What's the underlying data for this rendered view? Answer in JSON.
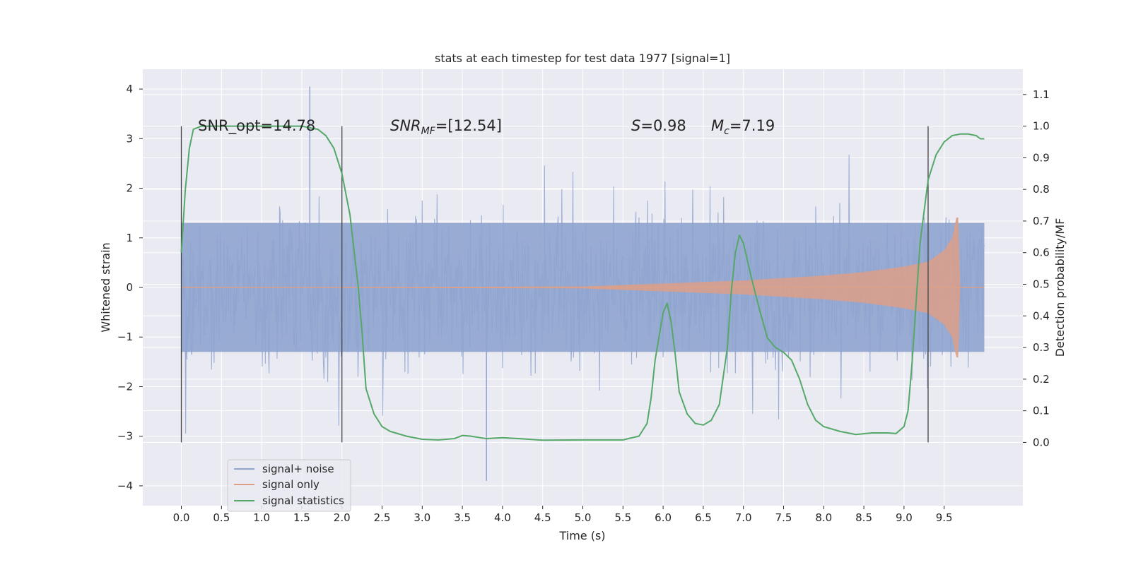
{
  "chart_data": {
    "type": "line",
    "title": "stats at each timestep for test data 1977 [signal=1]",
    "xlabel": "Time (s)",
    "ylabel_left": "Whitened strain",
    "ylabel_right": "Detection probability/MF",
    "xlim": [
      -0.48,
      10.48
    ],
    "ylim_left": [
      -4.4,
      4.4
    ],
    "ylim_right": [
      -0.2,
      1.18
    ],
    "x_ticks": [
      "0.0",
      "0.5",
      "1.0",
      "1.5",
      "2.0",
      "2.5",
      "3.0",
      "3.5",
      "4.0",
      "4.5",
      "5.0",
      "5.5",
      "6.0",
      "6.5",
      "7.0",
      "7.5",
      "8.0",
      "8.5",
      "9.0",
      "9.5"
    ],
    "y_ticks_left": [
      "4",
      "3",
      "2",
      "1",
      "0",
      "−1",
      "−2",
      "−3",
      "−4"
    ],
    "y_ticks_right": [
      "1.1",
      "1.0",
      "0.9",
      "0.8",
      "0.7",
      "0.6",
      "0.5",
      "0.4",
      "0.3",
      "0.2",
      "0.1",
      "0.0"
    ],
    "grid": true,
    "legend_position": "lower-left",
    "annotations": {
      "snr_opt": "SNR_opt=14.78",
      "snr_mf_main": "SNR",
      "snr_mf_sub": "MF",
      "snr_mf_rest": "=[12.54]",
      "s_main": "S",
      "s_rest": "=0.98",
      "mc_main": "M",
      "mc_sub": "c",
      "mc_rest": "=7.19"
    },
    "vertical_markers_x": [
      0.0,
      2.0,
      9.3
    ],
    "series": [
      {
        "name": "signal+ noise",
        "color": "#8fa4cf",
        "description_axis": "left",
        "t_range": [
          0.0,
          10.0
        ],
        "typical_amplitude": 1.3,
        "peak_values": [
          4.05,
          -3.9
        ]
      },
      {
        "name": "signal only",
        "color": "#dd9f88",
        "description_axis": "left",
        "envelope": {
          "x": [
            0.0,
            5.0,
            6.0,
            7.0,
            8.0,
            8.5,
            9.0,
            9.3,
            9.5,
            9.6,
            9.65,
            9.67,
            9.7,
            10.0
          ],
          "y": [
            0.0,
            0.02,
            0.08,
            0.14,
            0.24,
            0.31,
            0.42,
            0.52,
            0.75,
            1.0,
            1.4,
            1.7,
            0.0,
            0.0
          ]
        }
      },
      {
        "name": "signal statistics",
        "color": "#55a868",
        "description_axis": "right",
        "x": [
          0.0,
          0.05,
          0.1,
          0.15,
          0.25,
          0.5,
          1.0,
          1.5,
          1.7,
          1.8,
          1.9,
          2.0,
          2.1,
          2.2,
          2.25,
          2.3,
          2.4,
          2.5,
          2.6,
          2.8,
          3.0,
          3.2,
          3.4,
          3.5,
          3.6,
          3.8,
          4.0,
          4.2,
          4.5,
          5.0,
          5.5,
          5.7,
          5.8,
          5.85,
          5.9,
          6.0,
          6.05,
          6.1,
          6.15,
          6.2,
          6.3,
          6.4,
          6.5,
          6.6,
          6.7,
          6.8,
          6.85,
          6.9,
          6.95,
          7.0,
          7.1,
          7.2,
          7.3,
          7.4,
          7.5,
          7.6,
          7.7,
          7.8,
          7.9,
          8.0,
          8.2,
          8.4,
          8.6,
          8.8,
          8.9,
          9.0,
          9.05,
          9.1,
          9.2,
          9.3,
          9.4,
          9.5,
          9.6,
          9.7,
          9.8,
          9.9,
          9.95,
          10.0
        ],
        "y": [
          0.6,
          0.8,
          0.93,
          0.99,
          1.0,
          1.0,
          1.0,
          1.0,
          0.99,
          0.97,
          0.93,
          0.85,
          0.72,
          0.5,
          0.35,
          0.17,
          0.09,
          0.05,
          0.035,
          0.02,
          0.01,
          0.008,
          0.012,
          0.022,
          0.02,
          0.012,
          0.015,
          0.012,
          0.007,
          0.008,
          0.008,
          0.02,
          0.06,
          0.14,
          0.26,
          0.41,
          0.44,
          0.38,
          0.28,
          0.16,
          0.09,
          0.06,
          0.055,
          0.07,
          0.12,
          0.3,
          0.48,
          0.6,
          0.655,
          0.63,
          0.52,
          0.42,
          0.33,
          0.3,
          0.285,
          0.26,
          0.2,
          0.12,
          0.07,
          0.05,
          0.035,
          0.025,
          0.03,
          0.03,
          0.028,
          0.05,
          0.1,
          0.25,
          0.63,
          0.83,
          0.91,
          0.95,
          0.97,
          0.975,
          0.975,
          0.97,
          0.96,
          0.96
        ]
      }
    ]
  }
}
